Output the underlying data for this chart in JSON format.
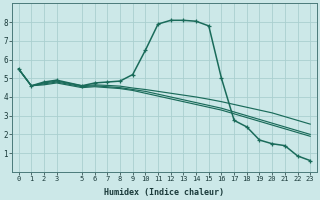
{
  "xlabel": "Humidex (Indice chaleur)",
  "bg_color": "#cce8e8",
  "grid_color": "#aacfcf",
  "line_color": "#1a6b5a",
  "xlim": [
    -0.5,
    23.5
  ],
  "ylim": [
    0,
    9
  ],
  "xticks": [
    0,
    1,
    2,
    3,
    5,
    6,
    7,
    8,
    9,
    10,
    11,
    12,
    13,
    14,
    15,
    16,
    17,
    18,
    19,
    20,
    21,
    22,
    23
  ],
  "yticks": [
    1,
    2,
    3,
    4,
    5,
    6,
    7,
    8
  ],
  "series": {
    "line1_x": [
      0,
      1,
      2,
      3,
      5,
      6,
      7,
      8,
      9,
      10,
      11,
      12,
      13,
      14,
      15,
      16,
      17,
      18,
      19,
      20,
      21,
      22,
      23
    ],
    "line1_y": [
      5.5,
      4.6,
      4.8,
      4.9,
      4.6,
      4.75,
      4.8,
      4.85,
      5.2,
      6.5,
      7.9,
      8.1,
      8.1,
      8.05,
      7.8,
      5.0,
      2.75,
      2.4,
      1.7,
      1.5,
      1.4,
      0.85,
      0.6
    ],
    "line2_x": [
      0,
      1,
      2,
      3,
      5,
      6,
      7,
      8,
      9,
      10,
      11,
      12,
      13,
      14,
      15,
      16,
      17,
      18,
      19,
      20,
      21,
      22,
      23
    ],
    "line2_y": [
      5.5,
      4.6,
      4.7,
      4.8,
      4.55,
      4.6,
      4.55,
      4.5,
      4.4,
      4.3,
      4.15,
      4.0,
      3.85,
      3.7,
      3.55,
      3.4,
      3.2,
      3.0,
      2.8,
      2.6,
      2.4,
      2.2,
      2.0
    ],
    "line3_x": [
      0,
      1,
      2,
      3,
      5,
      6,
      7,
      8,
      9,
      10,
      11,
      12,
      13,
      14,
      15,
      16,
      17,
      18,
      19,
      20,
      21,
      22,
      23
    ],
    "line3_y": [
      5.5,
      4.6,
      4.65,
      4.75,
      4.5,
      4.55,
      4.5,
      4.45,
      4.35,
      4.2,
      4.05,
      3.9,
      3.75,
      3.6,
      3.45,
      3.3,
      3.1,
      2.9,
      2.7,
      2.5,
      2.3,
      2.1,
      1.9
    ],
    "line4_x": [
      0,
      1,
      2,
      3,
      5,
      6,
      7,
      8,
      9,
      10,
      11,
      12,
      13,
      14,
      15,
      16,
      17,
      18,
      19,
      20,
      21,
      22,
      23
    ],
    "line4_y": [
      5.5,
      4.6,
      4.75,
      4.85,
      4.6,
      4.65,
      4.62,
      4.58,
      4.48,
      4.4,
      4.3,
      4.2,
      4.1,
      4.0,
      3.88,
      3.75,
      3.6,
      3.45,
      3.3,
      3.15,
      2.95,
      2.75,
      2.55
    ]
  }
}
